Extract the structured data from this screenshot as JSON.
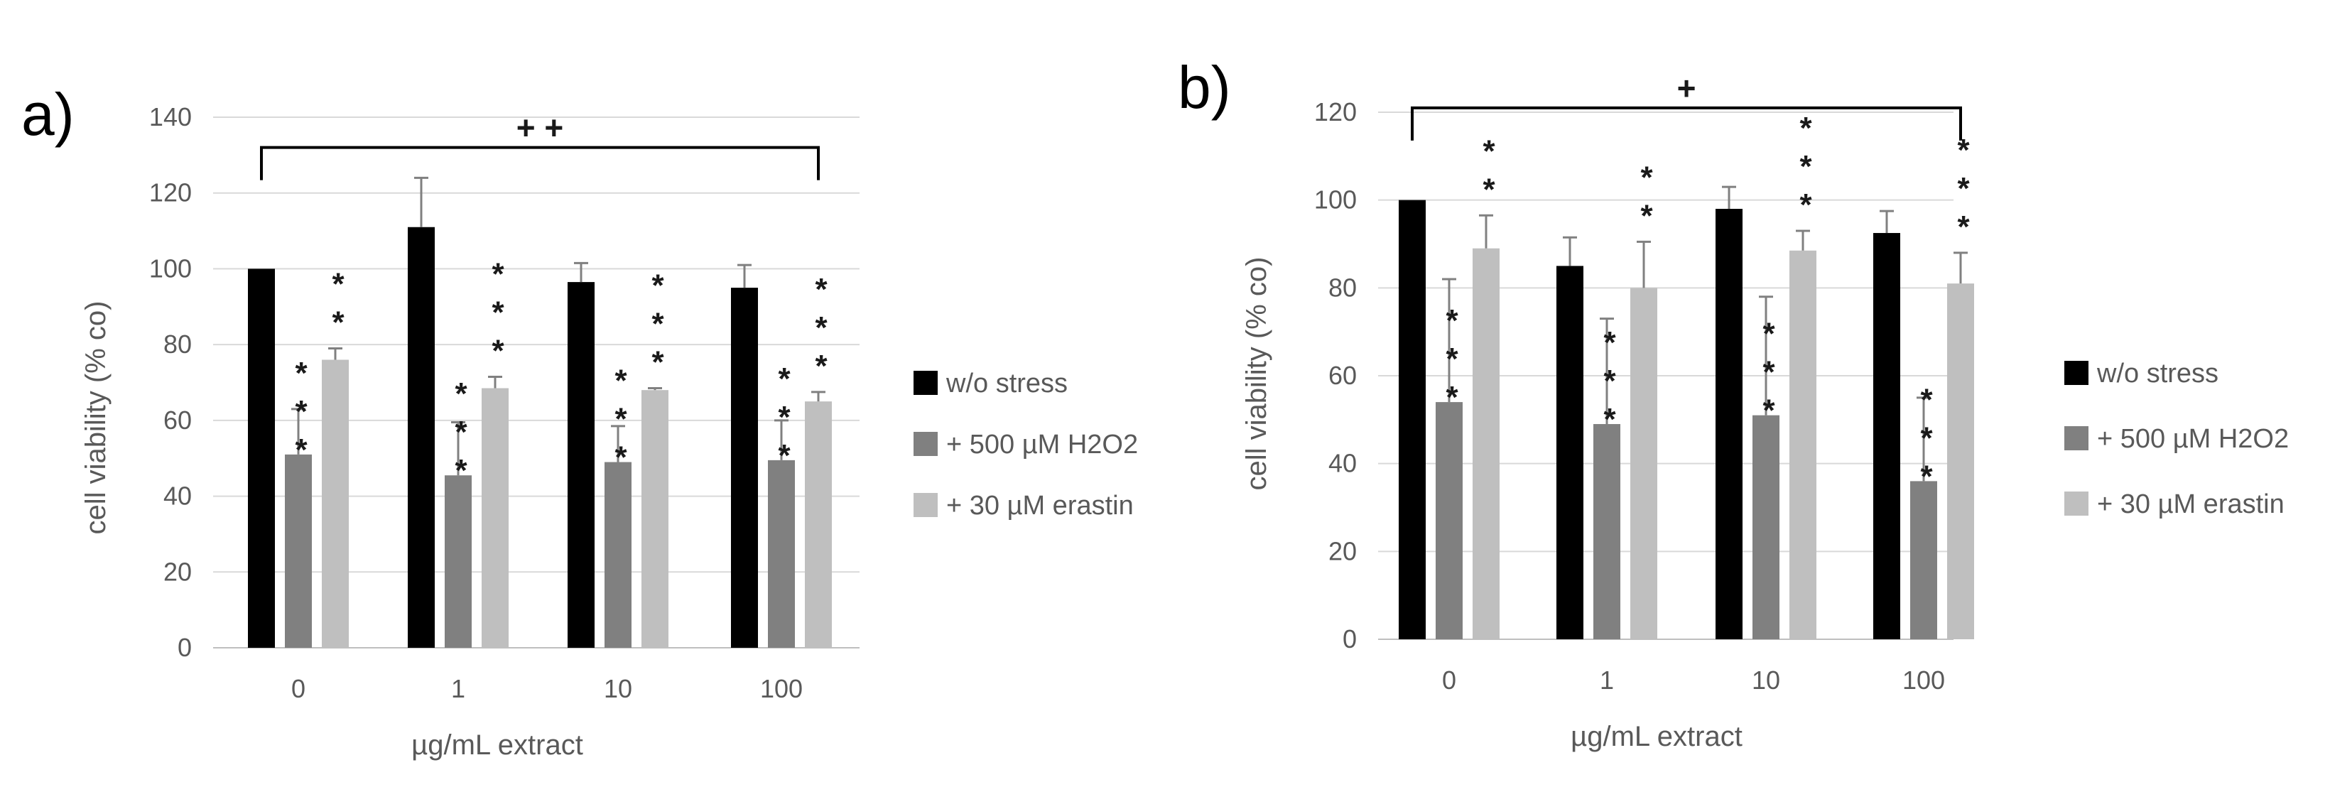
{
  "chart_data": [
    {
      "type": "bar",
      "panel_label": "a)",
      "title": "",
      "xlabel": "µg/mL extract",
      "ylabel": "cell viability (% co)",
      "ylim": [
        0,
        140
      ],
      "yticks": [
        0,
        20,
        40,
        60,
        80,
        100,
        120,
        140
      ],
      "grid": true,
      "legend_position": "right",
      "categories": [
        "0",
        "1",
        "10",
        "100"
      ],
      "series": [
        {
          "name": "w/o stress",
          "color": "#000000",
          "values": [
            100,
            111,
            96.5,
            95
          ],
          "errors": [
            0,
            13,
            5,
            6
          ],
          "stars": [
            "",
            "",
            "",
            ""
          ]
        },
        {
          "name": "+ 500 µM H2O2",
          "color": "#808080",
          "values": [
            51,
            45.5,
            49,
            49.5
          ],
          "errors": [
            12,
            14,
            9.5,
            10.5
          ],
          "stars": [
            "***",
            "***",
            "***",
            "***"
          ]
        },
        {
          "name": "+ 30 µM erastin",
          "color": "#bfbfbf",
          "values": [
            76,
            68.5,
            68,
            65
          ],
          "errors": [
            3,
            3,
            0.5,
            2.5
          ],
          "stars": [
            "**",
            "***",
            "***",
            "***"
          ]
        }
      ],
      "significance": {
        "label": "+ +",
        "from_category": "0",
        "to_category": "100",
        "level": 132
      }
    },
    {
      "type": "bar",
      "panel_label": "b)",
      "title": "",
      "xlabel": "µg/mL extract",
      "ylabel": "cell viability (% co)",
      "ylim": [
        0,
        120
      ],
      "yticks": [
        0,
        20,
        40,
        60,
        80,
        100,
        120
      ],
      "grid": true,
      "legend_position": "right",
      "categories": [
        "0",
        "1",
        "10",
        "100"
      ],
      "series": [
        {
          "name": "w/o stress",
          "color": "#000000",
          "values": [
            100,
            85,
            98,
            92.5
          ],
          "errors": [
            0,
            6.5,
            5,
            5
          ],
          "stars": [
            "",
            "",
            "",
            ""
          ]
        },
        {
          "name": "+ 500 µM H2O2",
          "color": "#808080",
          "values": [
            54,
            49,
            51,
            36
          ],
          "errors": [
            28,
            24,
            27,
            19
          ],
          "stars": [
            "***",
            "***",
            "***",
            "***"
          ]
        },
        {
          "name": "+ 30 µM erastin",
          "color": "#bfbfbf",
          "values": [
            89,
            80,
            88.5,
            81
          ],
          "errors": [
            7.5,
            10.5,
            4.5,
            7
          ],
          "stars": [
            "**",
            "**",
            "***",
            "***"
          ]
        }
      ],
      "significance": {
        "label": "+",
        "from_category": "0",
        "to_category": "100",
        "level": 121
      }
    }
  ]
}
